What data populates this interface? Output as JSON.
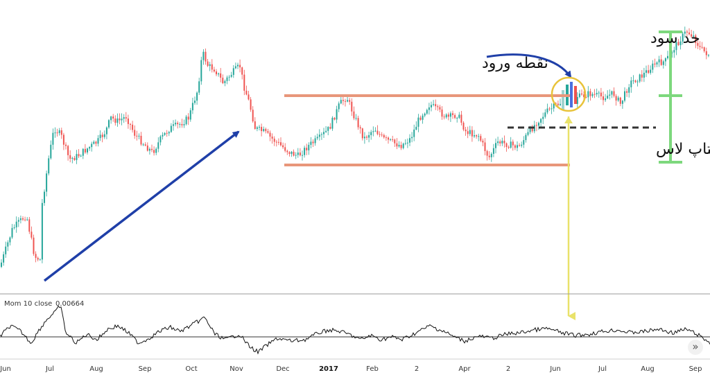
{
  "chart_data": {
    "type": "candlestick",
    "x_ticks": [
      "Jun",
      "Jul",
      "Aug",
      "Sep",
      "Oct",
      "Nov",
      "Dec",
      "2017",
      "Feb",
      "2",
      "Apr",
      "2",
      "Jun",
      "Jul",
      "Aug",
      "Sep"
    ],
    "annotations": {
      "entry_label": "نقطه ورود",
      "take_profit_label": "حد سود",
      "stop_loss_label": "استاپ لاس"
    },
    "indicator": {
      "name": "Mom 10 close",
      "value": "0.00664"
    },
    "colors": {
      "up": "#26a69a",
      "down": "#ef5350",
      "range_lines": "#e8967a",
      "trend_arrow": "#1f3fa8",
      "target_bracket": "#7dd87d",
      "projection": "#e9e26a",
      "entry_circle": "#e8c33a",
      "stop_line": "#333333"
    }
  },
  "ui": {
    "scroll_icon": "»"
  }
}
